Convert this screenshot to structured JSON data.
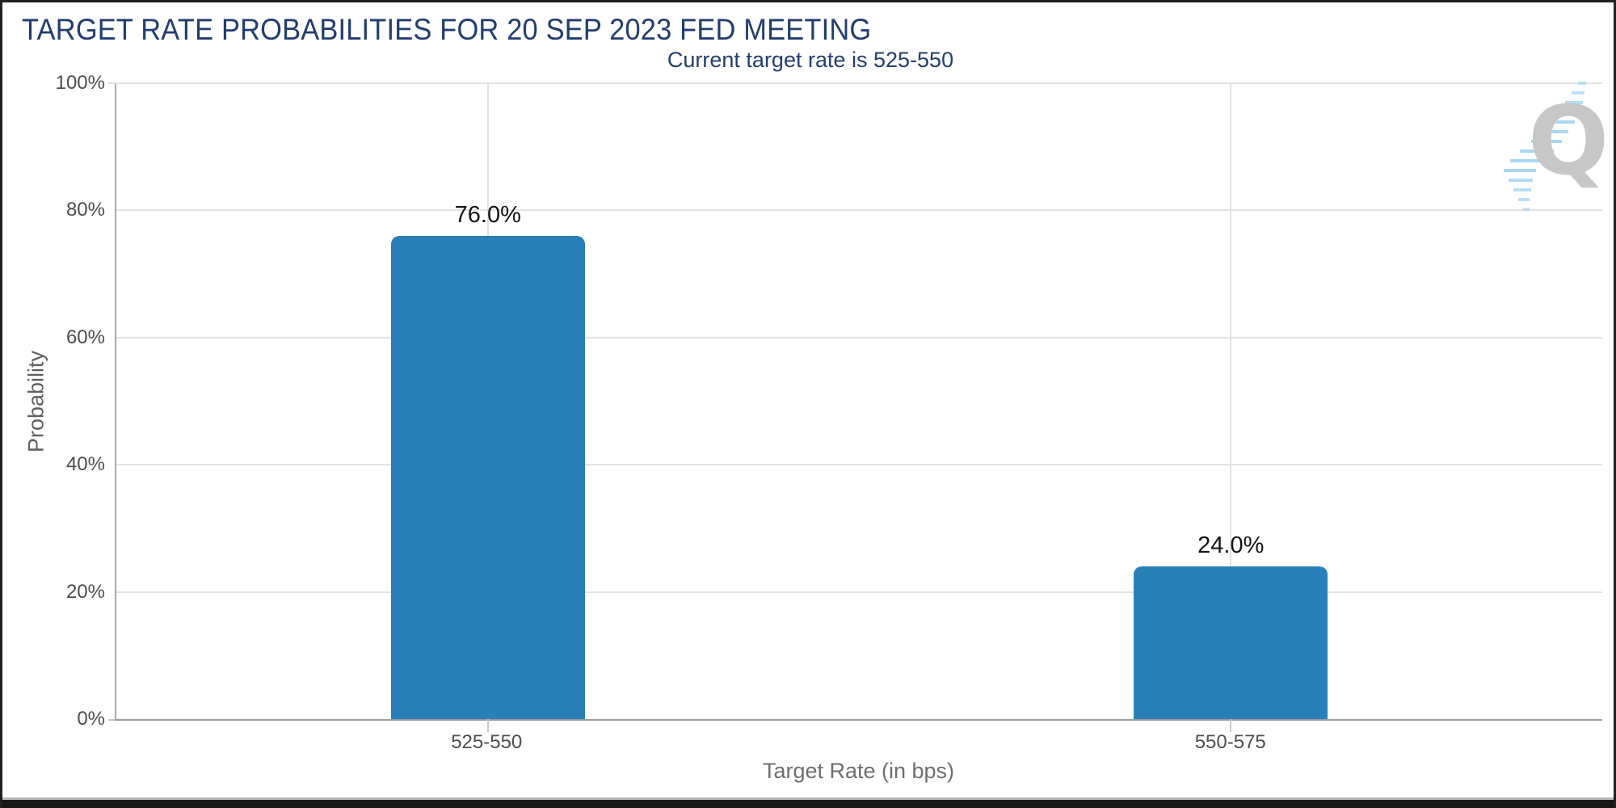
{
  "chart_data": {
    "type": "bar",
    "title": "TARGET RATE PROBABILITIES FOR 20 SEP 2023 FED MEETING",
    "subtitle": "Current target rate is 525-550",
    "categories": [
      "525-550",
      "550-575"
    ],
    "values": [
      76.0,
      24.0
    ],
    "value_labels": [
      "76.0%",
      "24.0%"
    ],
    "xlabel": "Target Rate (in bps)",
    "ylabel": "Probability",
    "ylim": [
      0,
      100
    ],
    "yticks": [
      0,
      20,
      40,
      60,
      80,
      100
    ],
    "ytick_labels": [
      "0%",
      "20%",
      "40%",
      "60%",
      "80%",
      "100%"
    ],
    "grid": true,
    "legend": "none",
    "bar_color": "#2980b8"
  },
  "watermark": {
    "letter": "Q"
  },
  "colors": {
    "navy": "#223d6e",
    "bar": "#2980b8",
    "grid": "#e2e2e2",
    "axis": "#9c9c9c",
    "watermark_gray": "#c7c7c7",
    "watermark_blue": "#a9d7f2"
  }
}
